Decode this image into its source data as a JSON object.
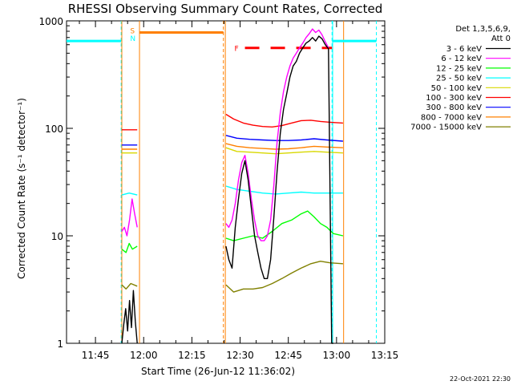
{
  "chart_data": {
    "type": "line",
    "title": "RHESSI Observing Summary Count Rates, Corrected",
    "xlabel": "Start Time (26-Jun-12 11:36:02)",
    "ylabel": "Corrected Count Rate (s⁻¹ detector⁻¹)",
    "ylim": [
      1,
      1000
    ],
    "yscale": "log",
    "xlim_minutes": [
      0,
      99
    ],
    "x_ticks": [
      {
        "m": 9,
        "label": "11:45"
      },
      {
        "m": 24,
        "label": "12:00"
      },
      {
        "m": 39,
        "label": "12:15"
      },
      {
        "m": 54,
        "label": "12:30"
      },
      {
        "m": 69,
        "label": "12:45"
      },
      {
        "m": 84,
        "label": "13:00"
      },
      {
        "m": 99,
        "label": "13:15"
      }
    ],
    "y_ticks": [
      {
        "v": 1,
        "label": "1"
      },
      {
        "v": 10,
        "label": "10"
      },
      {
        "v": 100,
        "label": "100"
      },
      {
        "v": 1000,
        "label": "1000"
      }
    ],
    "legend_header": [
      "Det 1,3,5,6,9,",
      "Att 0"
    ],
    "series": [
      {
        "name": "3 - 6 keV",
        "color": "#000000",
        "segments": [
          {
            "x": [
              17.2,
              17.8,
              18.4,
              19.0,
              19.6,
              20.2,
              20.8,
              21.4,
              22.0
            ],
            "y": [
              1.0,
              1.5,
              2.1,
              1.3,
              2.5,
              1.4,
              3.1,
              1.6,
              1.0
            ]
          },
          {
            "x": [
              49.6,
              50.5,
              51.5,
              52.5,
              53.5,
              54.5,
              55.5,
              56.5,
              57.5,
              58.5,
              59.5,
              60.5,
              61.5,
              62.5,
              63.5,
              64.5,
              65.5,
              66.5,
              67.5,
              68.5,
              69.5,
              70.5,
              71.5,
              72.5,
              73.5,
              74.5,
              75.5,
              76.5,
              77.5,
              78.5,
              79.5,
              80.5,
              81.5,
              82.5,
              83.0
            ],
            "y": [
              8,
              6,
              5,
              12,
              22,
              38,
              50,
              33,
              18,
              10,
              7,
              5,
              4,
              4,
              6,
              15,
              40,
              90,
              150,
              210,
              300,
              380,
              420,
              500,
              560,
              620,
              650,
              700,
              650,
              720,
              680,
              600,
              550,
              1.0,
              1.0
            ]
          }
        ]
      },
      {
        "name": "6 - 12 keV",
        "color": "#ff00ff",
        "segments": [
          {
            "x": [
              17.2,
              18.0,
              18.8,
              19.6,
              20.4,
              21.2,
              22.0
            ],
            "y": [
              11,
              12,
              10,
              14,
              22,
              16,
              12
            ]
          },
          {
            "x": [
              49.6,
              50.5,
              51.5,
              52.5,
              53.5,
              54.5,
              55.5,
              56.5,
              57.5,
              58.5,
              59.5,
              60.5,
              61.5,
              62.5,
              63.5,
              64.5,
              65.5,
              66.5,
              67.5,
              68.5,
              69.5,
              70.5,
              71.5,
              72.5,
              73.5,
              74.5,
              75.5,
              76.5,
              77.5,
              78.5,
              79.5,
              80.5,
              81.5
            ],
            "y": [
              13,
              12,
              14,
              20,
              33,
              48,
              56,
              38,
              22,
              14,
              10,
              9,
              9,
              10,
              14,
              30,
              75,
              140,
              220,
              300,
              380,
              450,
              500,
              560,
              620,
              700,
              760,
              840,
              780,
              820,
              740,
              640,
              560
            ]
          }
        ]
      },
      {
        "name": "12 - 25 keV",
        "color": "#00ff00",
        "segments": [
          {
            "x": [
              17.2,
              18.5,
              19.5,
              20.5,
              22.0
            ],
            "y": [
              7.5,
              7.0,
              8.5,
              7.5,
              8.0
            ]
          },
          {
            "x": [
              49.6,
              52,
              55,
              58,
              61,
              64,
              67,
              70,
              73,
              75,
              77,
              79,
              81,
              83,
              86
            ],
            "y": [
              9.5,
              9.0,
              9.5,
              10.0,
              9.5,
              11.0,
              13.0,
              14.0,
              16.0,
              17.0,
              15.0,
              13.0,
              12.0,
              10.5,
              10.0
            ]
          }
        ]
      },
      {
        "name": "25 - 50 keV",
        "color": "#00ffff",
        "segments": [
          {
            "x": [
              17.2,
              19.5,
              22.0
            ],
            "y": [
              24,
              25,
              24
            ]
          },
          {
            "x": [
              49.6,
              53,
              57,
              61,
              65,
              69,
              73,
              77,
              81,
              86
            ],
            "y": [
              29,
              27,
              26,
              25,
              24.5,
              25,
              25.5,
              25,
              25,
              25
            ]
          }
        ]
      },
      {
        "name": "50 - 100 keV",
        "color": "#d8d800",
        "segments": [
          {
            "x": [
              17.2,
              22.0
            ],
            "y": [
              59,
              59
            ]
          },
          {
            "x": [
              49.6,
              53,
              57,
              61,
              65,
              69,
              73,
              77,
              81,
              86
            ],
            "y": [
              66,
              61,
              60,
              59,
              58,
              59,
              60,
              61,
              60,
              59
            ]
          }
        ]
      },
      {
        "name": "100 - 300 keV",
        "color": "#ff0000",
        "segments": [
          {
            "x": [
              17.2,
              22.0
            ],
            "y": [
              97,
              97
            ]
          },
          {
            "x": [
              49.6,
              52,
              55,
              58,
              61,
              64,
              67,
              70,
              73,
              76,
              79,
              82,
              86
            ],
            "y": [
              135,
              122,
              112,
              107,
              104,
              103,
              106,
              112,
              118,
              119,
              116,
              114,
              112
            ]
          }
        ]
      },
      {
        "name": "300 - 800 keV",
        "color": "#0000ff",
        "segments": [
          {
            "x": [
              17.2,
              22.0
            ],
            "y": [
              70,
              70
            ]
          },
          {
            "x": [
              49.6,
              53,
              57,
              61,
              65,
              69,
              73,
              77,
              81,
              86
            ],
            "y": [
              86,
              81,
              79,
              78,
              77,
              77,
              78,
              80,
              78,
              76
            ]
          }
        ]
      },
      {
        "name": "800 - 7000 keV",
        "color": "#ff8000",
        "segments": [
          {
            "x": [
              17.2,
              22.0
            ],
            "y": [
              64,
              64
            ]
          },
          {
            "x": [
              49.6,
              53,
              57,
              61,
              65,
              69,
              73,
              77,
              81,
              86
            ],
            "y": [
              72,
              68,
              66,
              65,
              64,
              64.5,
              66,
              68,
              67,
              66
            ]
          }
        ]
      },
      {
        "name": "7000 - 15000 keV",
        "color": "#808000",
        "segments": [
          {
            "x": [
              17.2,
              18.5,
              20.0,
              22.0
            ],
            "y": [
              3.5,
              3.2,
              3.6,
              3.4
            ]
          },
          {
            "x": [
              49.6,
              52,
              55,
              58,
              61,
              64,
              67,
              70,
              73,
              76,
              79,
              82,
              86
            ],
            "y": [
              3.5,
              3.0,
              3.2,
              3.2,
              3.3,
              3.6,
              4.0,
              4.5,
              5.0,
              5.5,
              5.8,
              5.6,
              5.5
            ]
          }
        ]
      }
    ],
    "vertical_markers": [
      {
        "m": 17.0,
        "color": "#00ffff",
        "style": "dashed"
      },
      {
        "m": 22.7,
        "color": "#ff8000",
        "style": "solid"
      },
      {
        "m": 48.8,
        "color": "#ff8000",
        "style": "dashed"
      },
      {
        "m": 82.6,
        "color": "#00ffff",
        "style": "dashed"
      },
      {
        "m": 96.4,
        "color": "#00ffff",
        "style": "dashed"
      },
      {
        "m": 17.2,
        "color": "#ff8000",
        "style": "solid"
      },
      {
        "m": 86.2,
        "color": "#ff8000",
        "style": "solid"
      },
      {
        "m": 82.8,
        "color": "#00ffff",
        "style": "solid"
      },
      {
        "m": 49.4,
        "color": "#ff8000",
        "style": "solid"
      }
    ],
    "state_bars": [
      {
        "label": "",
        "color": "#00ffff",
        "x": [
          0,
          17.0
        ],
        "y": 650,
        "style": "solid"
      },
      {
        "label": "S",
        "color": "#ff8000",
        "x": [
          17.8,
          18.3
        ],
        "y": 820,
        "style": "label"
      },
      {
        "label": "N",
        "color": "#00ffff",
        "x": [
          17.8,
          18.3
        ],
        "y": 700,
        "style": "label"
      },
      {
        "label": "",
        "color": "#ff8000",
        "x": [
          22.7,
          48.8
        ],
        "y": 780,
        "style": "solid"
      },
      {
        "label": "F",
        "color": "#ff0000",
        "x": [
          55.5,
          82.6
        ],
        "y": 560,
        "style": "dashed"
      },
      {
        "label": "",
        "color": "#00ffff",
        "x": [
          82.6,
          96.4
        ],
        "y": 650,
        "style": "solid"
      }
    ],
    "timestamp": "22-Oct-2021 22:30"
  }
}
